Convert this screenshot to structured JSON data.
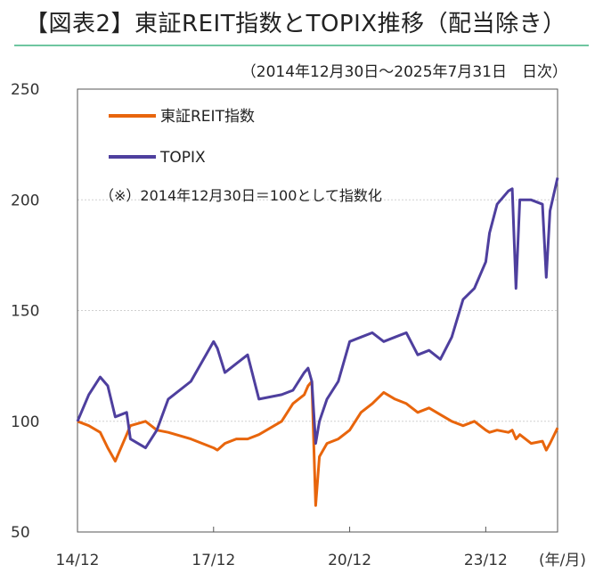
{
  "title": "【図表2】東証REIT指数とTOPIX推移（配当除き）",
  "subtitle": "（2014年12月30日～2025年7月31日　日次）",
  "note": "（※）2014年12月30日＝100として指数化",
  "x_unit": "(年/月)",
  "colors": {
    "reit": "#e8650c",
    "topix": "#4e3f9e",
    "grid": "#d0d0d0",
    "axis": "#555555",
    "accent": "#6fc6a0"
  },
  "chart_data": {
    "type": "line",
    "title": "【図表2】東証REIT指数とTOPIX推移（配当除き）",
    "subtitle": "（2014年12月30日～2025年7月31日　日次）",
    "xlabel": "(年/月)",
    "ylabel": "",
    "ylim": [
      50,
      250
    ],
    "yticks": [
      50,
      100,
      150,
      200,
      250
    ],
    "xlim": [
      "2014-12",
      "2025-07"
    ],
    "xticks": [
      "14/12",
      "17/12",
      "20/12",
      "23/12"
    ],
    "grid": true,
    "legend": "top-left",
    "x": [
      "2014-12",
      "2015-03",
      "2015-06",
      "2015-08",
      "2015-10",
      "2016-01",
      "2016-02",
      "2016-06",
      "2016-09",
      "2016-12",
      "2017-06",
      "2017-12",
      "2018-01",
      "2018-03",
      "2018-06",
      "2018-09",
      "2018-12",
      "2019-06",
      "2019-09",
      "2019-12",
      "2020-01",
      "2020-02",
      "2020-03",
      "2020-04",
      "2020-06",
      "2020-09",
      "2020-12",
      "2021-03",
      "2021-06",
      "2021-09",
      "2021-12",
      "2022-03",
      "2022-06",
      "2022-09",
      "2022-12",
      "2023-03",
      "2023-06",
      "2023-09",
      "2023-12",
      "2024-01",
      "2024-03",
      "2024-06",
      "2024-07",
      "2024-08",
      "2024-09",
      "2024-12",
      "2025-03",
      "2025-04",
      "2025-05",
      "2025-07"
    ],
    "series": [
      {
        "name": "東証REIT指数",
        "color": "#e8650c",
        "values": [
          100,
          98,
          95,
          88,
          82,
          94,
          98,
          100,
          96,
          95,
          92,
          88,
          87,
          90,
          92,
          92,
          94,
          100,
          108,
          112,
          116,
          118,
          62,
          84,
          90,
          92,
          96,
          104,
          108,
          113,
          110,
          108,
          104,
          106,
          103,
          100,
          98,
          100,
          96,
          95,
          96,
          95,
          96,
          92,
          94,
          90,
          91,
          87,
          90,
          97
        ]
      },
      {
        "name": "TOPIX",
        "color": "#4e3f9e",
        "values": [
          100,
          112,
          120,
          116,
          102,
          104,
          92,
          88,
          96,
          110,
          118,
          136,
          133,
          122,
          126,
          130,
          110,
          112,
          114,
          122,
          124,
          118,
          90,
          100,
          110,
          118,
          136,
          138,
          140,
          136,
          138,
          140,
          130,
          132,
          128,
          138,
          155,
          160,
          172,
          185,
          198,
          204,
          205,
          160,
          200,
          200,
          198,
          165,
          195,
          210
        ]
      }
    ]
  }
}
